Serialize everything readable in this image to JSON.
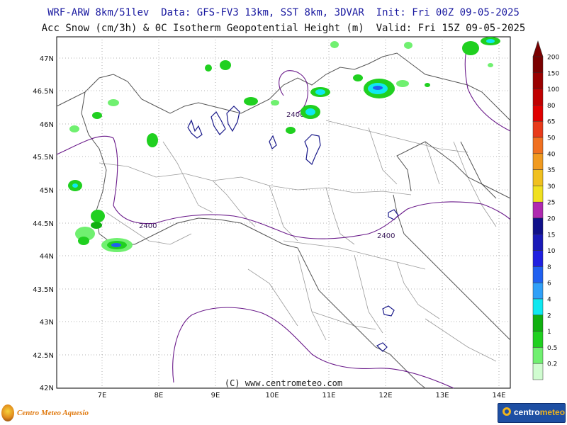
{
  "header": {
    "line1": "WRF-ARW 8km/51lev  Data: GFS-FV3 13km, SST 8km, 3DVAR  Init: Fri 00Z 09-05-2025",
    "line2": "Acc Snow (cm/3h) & 0C Isotherm Geopotential Height (m)  Valid: Fri 15Z 09-05-2025"
  },
  "map": {
    "lat_labels": [
      "47N",
      "46.5N",
      "46N",
      "45.5N",
      "45N",
      "44.5N",
      "44N",
      "43.5N",
      "43N",
      "42.5N",
      "42N"
    ],
    "lon_labels": [
      "7E",
      "8E",
      "9E",
      "10E",
      "11E",
      "12E",
      "13E",
      "14E"
    ],
    "contour_value": "2400",
    "copyright": "(C) www.centrometeo.com"
  },
  "colorbar": {
    "labels": [
      "200",
      "150",
      "100",
      "80",
      "65",
      "50",
      "40",
      "35",
      "30",
      "25",
      "20",
      "15",
      "10",
      "8",
      "6",
      "4",
      "2",
      "1",
      "0.5",
      "0.2"
    ],
    "colors": [
      "#7a0000",
      "#9a0000",
      "#c00000",
      "#e00000",
      "#e83a1a",
      "#f07020",
      "#f09a20",
      "#f0c020",
      "#f0e020",
      "#b02ab0",
      "#10108a",
      "#1a1ab8",
      "#2020e0",
      "#2060f0",
      "#30a0f8",
      "#10e8f0",
      "#10b010",
      "#20d020",
      "#70f070",
      "#d0fcd0"
    ]
  },
  "logos": {
    "left_text": "Centro Meteo Aquesio",
    "right_text_main": "centro",
    "right_text_accent": "meteo"
  }
}
